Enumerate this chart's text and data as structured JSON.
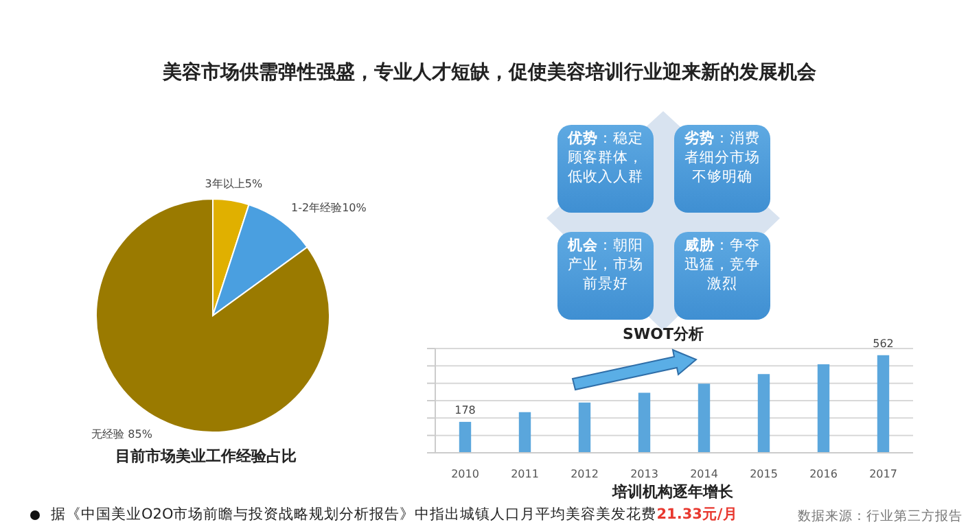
{
  "chart_data": [
    {
      "type": "other",
      "title": "美容市场供需弹性强盛，专业人才短缺，促使美容培训行业迎来新的发展机会",
      "annotations": [
        "据《中国美业O2O市场前瞻与投资战略规划分析报告》中指出城镇人口月平均美容美发花费",
        "21.33元/月",
        "数据来源：行业第三方报告"
      ]
    },
    {
      "type": "pie",
      "xlabel": "目前市场美业工作经验占比",
      "categories": [
        "3年以上",
        "1-2年经验",
        "无经验"
      ],
      "values": [
        5,
        10,
        85
      ],
      "colors": [
        "#e0b000",
        "#4a9fe0",
        "#9a7a00"
      ],
      "value_labels": [
        "5%",
        "10%",
        "85%"
      ]
    },
    {
      "type": "other",
      "title": "SWOT分析",
      "annotations": [
        "优势：稳定顾客群体，低收入人群",
        "劣势：消费者细分市场不够明确",
        "机会：朝阳产业，市场前景好",
        "威胁：争夺迅猛，竞争激烈"
      ]
    },
    {
      "type": "bar",
      "xlabel": "培训机构逐年增长",
      "categories": [
        "2010",
        "2011",
        "2012",
        "2013",
        "2014",
        "2015",
        "2016",
        "2017"
      ],
      "values": [
        178,
        234,
        289,
        345,
        398,
        453,
        509,
        562
      ],
      "color": "#5aa6dc",
      "value_labels": [
        "178",
        null,
        null,
        null,
        null,
        null,
        null,
        "562"
      ],
      "ylim": [
        0,
        600
      ],
      "grid": "y",
      "tick_labels": "x"
    }
  ]
}
